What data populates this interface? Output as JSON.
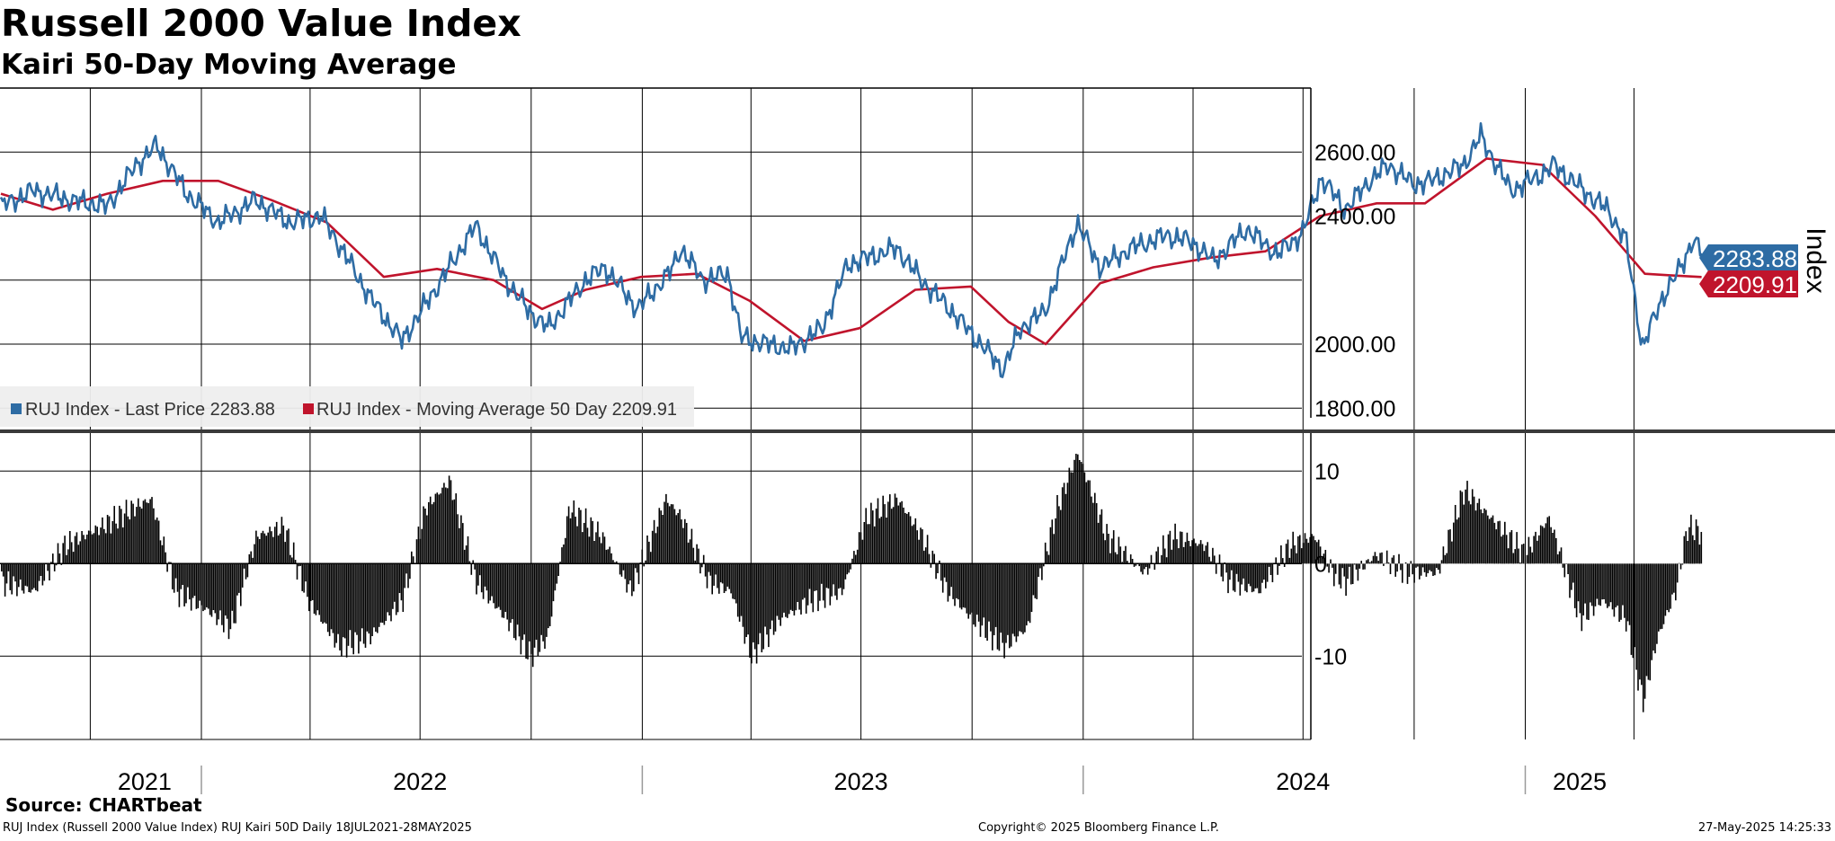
{
  "title": "Russell 2000 Value Index",
  "subtitle": "Kairi 50-Day Moving Average",
  "footer": {
    "source": "Source: CHARTbeat",
    "description": "RUJ Index (Russell 2000 Value Index) RUJ Kairi 50D  Daily 18JUL2021-28MAY2025",
    "copyright": "Copyright© 2025 Bloomberg Finance L.P.",
    "timestamp": "27-May-2025 14:25:33"
  },
  "colors": {
    "price": "#2e6ca4",
    "ma": "#c0142c",
    "kairi": "#000000",
    "grid": "#000000"
  },
  "chart_data": [
    {
      "type": "line",
      "ylabel": "Index",
      "ylim": [
        1770,
        2800
      ],
      "yticks": [
        1800,
        2000,
        2400,
        2600
      ],
      "ytick_labels": [
        "1800.00",
        "2000.00",
        "2400.00",
        "2600.00"
      ],
      "x_labels": [
        "2021",
        "2022",
        "2023",
        "2024",
        "2025"
      ],
      "legend_position": "bottom-left",
      "legend": [
        {
          "text": "RUJ Index - Last Price 2283.88",
          "color": "#2e6ca4"
        },
        {
          "text": "RUJ Index - Moving Average 50 Day 2209.91",
          "color": "#c0142c"
        }
      ],
      "last_value_tags": [
        {
          "value": 2283.88,
          "label": "2283.88",
          "color": "#2e6ca4"
        },
        {
          "value": 2209.91,
          "label": "2209.91",
          "color": "#c0142c"
        }
      ],
      "series": [
        {
          "name": "RUJ Index - Last Price",
          "x": [
            "2021-07-19",
            "2021-08-15",
            "2021-09-15",
            "2021-10-15",
            "2021-11-08",
            "2021-11-25",
            "2021-12-20",
            "2022-01-15",
            "2022-02-15",
            "2022-03-15",
            "2022-04-10",
            "2022-04-22",
            "2022-05-20",
            "2022-06-16",
            "2022-07-10",
            "2022-08-16",
            "2022-09-10",
            "2022-09-30",
            "2022-10-15",
            "2022-11-15",
            "2022-12-01",
            "2022-12-28",
            "2023-01-25",
            "2023-02-02",
            "2023-02-20",
            "2023-03-13",
            "2023-03-24",
            "2023-04-15",
            "2023-05-04",
            "2023-05-30",
            "2023-06-20",
            "2023-07-31",
            "2023-08-20",
            "2023-09-15",
            "2023-10-27",
            "2023-11-10",
            "2023-11-30",
            "2023-12-27",
            "2024-01-15",
            "2024-02-10",
            "2024-03-10",
            "2024-03-31",
            "2024-04-18",
            "2024-05-15",
            "2024-06-10",
            "2024-07-01",
            "2024-07-16",
            "2024-08-05",
            "2024-08-25",
            "2024-09-10",
            "2024-09-30",
            "2024-10-15",
            "2024-11-11",
            "2024-11-25",
            "2024-12-20",
            "2025-01-10",
            "2025-01-25",
            "2025-02-15",
            "2025-03-10",
            "2025-03-25",
            "2025-04-08",
            "2025-04-25",
            "2025-05-10",
            "2025-05-20",
            "2025-05-27"
          ],
          "y": [
            2430,
            2480,
            2450,
            2430,
            2560,
            2620,
            2470,
            2380,
            2450,
            2380,
            2400,
            2330,
            2150,
            2010,
            2150,
            2370,
            2200,
            2100,
            2050,
            2200,
            2240,
            2110,
            2230,
            2300,
            2200,
            2220,
            2020,
            2000,
            1985,
            2050,
            2250,
            2300,
            2200,
            2100,
            1920,
            2050,
            2100,
            2380,
            2240,
            2300,
            2340,
            2320,
            2260,
            2360,
            2280,
            2350,
            2520,
            2420,
            2510,
            2560,
            2500,
            2510,
            2560,
            2650,
            2480,
            2520,
            2560,
            2490,
            2420,
            2330,
            1990,
            2150,
            2240,
            2330,
            2283.88
          ]
        },
        {
          "name": "RUJ Index - Moving Average 50 Day",
          "x": [
            "2021-07-19",
            "2021-08-31",
            "2021-10-15",
            "2021-11-30",
            "2022-01-15",
            "2022-02-28",
            "2022-04-15",
            "2022-06-01",
            "2022-07-15",
            "2022-08-31",
            "2022-10-10",
            "2022-11-15",
            "2022-12-31",
            "2023-02-15",
            "2023-03-31",
            "2023-05-15",
            "2023-06-30",
            "2023-08-15",
            "2023-09-30",
            "2023-10-31",
            "2023-12-01",
            "2024-01-15",
            "2024-02-28",
            "2024-04-15",
            "2024-05-31",
            "2024-07-15",
            "2024-08-31",
            "2024-10-10",
            "2024-11-30",
            "2025-01-15",
            "2025-02-28",
            "2025-04-10",
            "2025-05-01",
            "2025-05-27"
          ],
          "y": [
            2470,
            2420,
            2470,
            2510,
            2510,
            2450,
            2380,
            2210,
            2235,
            2200,
            2110,
            2170,
            2210,
            2220,
            2135,
            2010,
            2050,
            2170,
            2180,
            2070,
            2000,
            2190,
            2240,
            2270,
            2290,
            2400,
            2440,
            2440,
            2580,
            2560,
            2400,
            2220,
            2215,
            2209.91
          ]
        }
      ]
    },
    {
      "type": "bar",
      "ylim": [
        -19,
        14.5
      ],
      "yticks": [
        -10,
        0,
        10
      ],
      "ytick_labels": [
        "-10",
        "0",
        "10"
      ],
      "series": [
        {
          "name": "RUJ Kairi 50D",
          "x": [
            "2021-07-19",
            "2021-08-15",
            "2021-09-10",
            "2021-10-10",
            "2021-11-05",
            "2021-11-20",
            "2021-12-10",
            "2022-01-05",
            "2022-01-25",
            "2022-02-15",
            "2022-03-10",
            "2022-03-30",
            "2022-04-25",
            "2022-05-20",
            "2022-06-16",
            "2022-07-05",
            "2022-07-25",
            "2022-08-16",
            "2022-09-10",
            "2022-09-30",
            "2022-10-14",
            "2022-11-01",
            "2022-11-28",
            "2022-12-22",
            "2023-01-20",
            "2023-02-02",
            "2023-02-25",
            "2023-03-15",
            "2023-04-01",
            "2023-04-25",
            "2023-05-20",
            "2023-06-15",
            "2023-07-05",
            "2023-07-31",
            "2023-08-20",
            "2023-09-10",
            "2023-10-01",
            "2023-10-27",
            "2023-11-15",
            "2023-12-10",
            "2023-12-27",
            "2024-01-20",
            "2024-02-20",
            "2024-03-15",
            "2024-04-10",
            "2024-05-01",
            "2024-05-25",
            "2024-06-20",
            "2024-07-10",
            "2024-07-25",
            "2024-08-05",
            "2024-08-30",
            "2024-09-25",
            "2024-10-20",
            "2024-11-11",
            "2024-12-10",
            "2024-12-31",
            "2025-01-20",
            "2025-02-15",
            "2025-03-05",
            "2025-03-25",
            "2025-04-08",
            "2025-04-20",
            "2025-05-05",
            "2025-05-15",
            "2025-05-27"
          ],
          "y": [
            -2,
            -3,
            2,
            4,
            6,
            7,
            -3,
            -5,
            -7,
            3,
            4,
            -4,
            -9,
            -8,
            -4,
            6,
            9,
            -2,
            -6,
            -10,
            -8,
            6,
            3,
            -3,
            7,
            5,
            -2,
            -3,
            -10,
            -6,
            -4,
            -3,
            5,
            7,
            3,
            -3,
            -6,
            -9,
            -7,
            6,
            12,
            3,
            -1,
            3,
            2,
            -2,
            -3,
            2,
            3,
            -1,
            -2,
            1,
            -1,
            -1,
            8,
            4,
            1,
            5,
            -6,
            -4,
            -6,
            -15,
            -8,
            -3,
            4,
            3.3
          ]
        }
      ]
    }
  ]
}
